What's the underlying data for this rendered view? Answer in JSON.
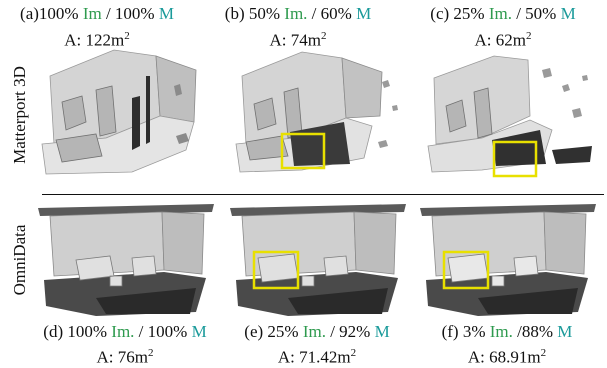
{
  "row_labels": {
    "top": "Matterport 3D",
    "bottom": "OmniData"
  },
  "panels_top": [
    {
      "prefix": "(a)100% ",
      "im": "Im",
      "sep": " / 100% ",
      "m": "M",
      "area_label": "A: 122m",
      "area_sup": "2"
    },
    {
      "prefix": "(b) 50% ",
      "im": "Im.",
      "sep": " / 60% ",
      "m": "M",
      "area_label": "A: 74m",
      "area_sup": "2"
    },
    {
      "prefix": "(c) 25% ",
      "im": "Im.",
      "sep": "  / 50% ",
      "m": "M",
      "area_label": "A: 62m",
      "area_sup": "2"
    }
  ],
  "panels_bottom": [
    {
      "prefix": "(d) 100% ",
      "im": "Im.",
      "sep": " / 100% ",
      "m": "M",
      "area_label": "A: 76m",
      "area_sup": "2"
    },
    {
      "prefix": "(e) 25% ",
      "im": "Im.",
      "sep": " / 92% ",
      "m": "M",
      "area_label": "A: 71.42m",
      "area_sup": "2"
    },
    {
      "prefix": "(f) 3% ",
      "im": "Im.",
      "sep": " /88% ",
      "m": "M",
      "area_label": "A: 68.91m",
      "area_sup": "2"
    }
  ],
  "colors": {
    "im": "#2e9a4e",
    "m": "#1a9a9a",
    "highlight_box": "#e8e000",
    "mesh_light": "#d9d9d9",
    "mesh_dark": "#3a3a3a"
  }
}
